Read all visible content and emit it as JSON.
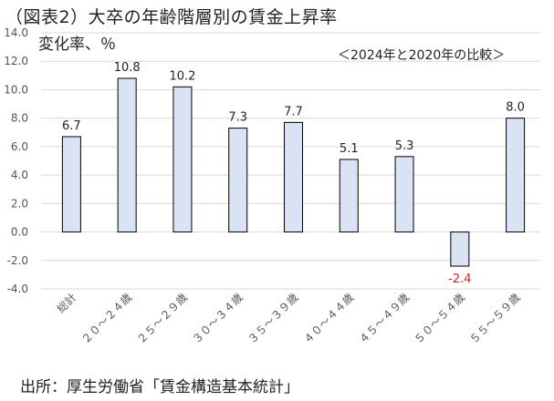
{
  "header": {
    "title": "（図表2）大卒の年齢階層別の賃金上昇率",
    "note": "＜2024年と2020年の比較＞"
  },
  "footer": {
    "source": "出所：厚生労働省「賃金構造基本統計」"
  },
  "colors": {
    "bar_fill": "#dae3f3",
    "bar_stroke": "#000000",
    "negative_label": "#e02020",
    "grid": "#d9d9d9"
  },
  "chart_data": {
    "type": "bar",
    "title": "（図表2）大卒の年齢階層別の賃金上昇率",
    "ylabel": "変化率、％",
    "xlabel": "",
    "categories": [
      "総計",
      "２０～２４歳",
      "２５～２９歳",
      "３０～３４歳",
      "３５～３９歳",
      "４０～４４歳",
      "４５～４９歳",
      "５０～５４歳",
      "５５～５９歳"
    ],
    "values": [
      6.7,
      10.8,
      10.2,
      7.3,
      7.7,
      5.1,
      5.3,
      -2.4,
      8.0
    ],
    "data_labels": [
      "6.7",
      "10.8",
      "10.2",
      "7.3",
      "7.7",
      "5.1",
      "5.3",
      "-2.4",
      "8.0"
    ],
    "ylim": [
      -4.0,
      14.0
    ],
    "yticks": [
      "14.0",
      "12.0",
      "10.0",
      "8.0",
      "6.0",
      "4.0",
      "2.0",
      "0.0",
      "-2.0",
      "-4.0"
    ],
    "grid": true,
    "legend": "none"
  }
}
